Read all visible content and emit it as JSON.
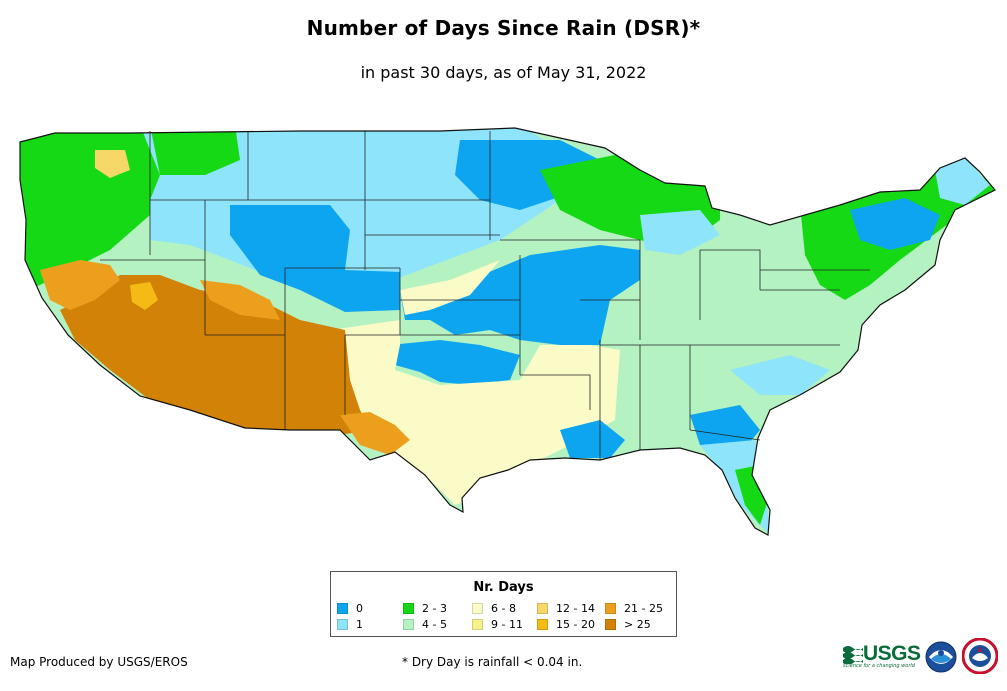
{
  "title": "Number of Days Since Rain (DSR)*",
  "subtitle": "in past 30 days, as of May 31, 2022",
  "legend": {
    "title": "Nr. Days",
    "items": [
      {
        "label": "0",
        "color": "#0ea5f0"
      },
      {
        "label": "1",
        "color": "#8ee4fa"
      },
      {
        "label": "2 - 3",
        "color": "#16d916"
      },
      {
        "label": "4 - 5",
        "color": "#b4f2c2"
      },
      {
        "label": "6 - 8",
        "color": "#fbfbc8"
      },
      {
        "label": "9 - 11",
        "color": "#f8f28c"
      },
      {
        "label": "12 - 14",
        "color": "#f6d868"
      },
      {
        "label": "15 - 20",
        "color": "#f4bb15"
      },
      {
        "label": "21 - 25",
        "color": "#ec9f1d"
      },
      {
        "label": "> 25",
        "color": "#d18207"
      }
    ]
  },
  "footer": {
    "credit": "Map Produced by USGS/EROS",
    "note": "* Dry Day is rainfall < 0.04 in."
  },
  "logos": {
    "usgs": {
      "name": "USGS",
      "tagline": "science for a changing world"
    }
  }
}
